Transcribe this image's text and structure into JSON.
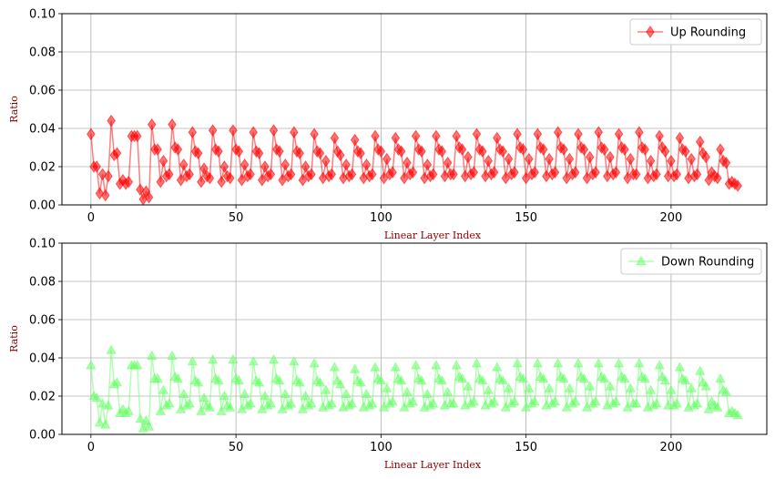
{
  "chart_data": [
    {
      "type": "line",
      "title": "",
      "xlabel": "Linear Layer Index",
      "ylabel": "Ratio",
      "xlim": [
        -10,
        233
      ],
      "ylim": [
        0,
        0.1
      ],
      "xticks": [
        "0",
        "50",
        "100",
        "150",
        "200"
      ],
      "xtick_values": [
        0,
        50,
        100,
        150,
        200
      ],
      "yticks": [
        "0.00",
        "0.02",
        "0.04",
        "0.06",
        "0.08",
        "0.10"
      ],
      "ytick_values": [
        0,
        0.02,
        0.04,
        0.06,
        0.08,
        0.1
      ],
      "grid": true,
      "legend": "top-right",
      "series": [
        {
          "name": "Up Rounding",
          "color": "#ff0000",
          "marker": "diamond",
          "x_start": 0,
          "values": [
            0.037,
            0.02,
            0.02,
            0.006,
            0.016,
            0.005,
            0.015,
            0.044,
            0.026,
            0.027,
            0.011,
            0.013,
            0.011,
            0.012,
            0.036,
            0.036,
            0.036,
            0.008,
            0.003,
            0.007,
            0.004,
            0.042,
            0.029,
            0.029,
            0.012,
            0.023,
            0.015,
            0.016,
            0.042,
            0.03,
            0.029,
            0.013,
            0.021,
            0.015,
            0.016,
            0.038,
            0.028,
            0.027,
            0.012,
            0.019,
            0.015,
            0.014,
            0.039,
            0.029,
            0.028,
            0.012,
            0.02,
            0.015,
            0.014,
            0.039,
            0.029,
            0.028,
            0.013,
            0.021,
            0.015,
            0.016,
            0.038,
            0.028,
            0.027,
            0.013,
            0.02,
            0.015,
            0.016,
            0.039,
            0.029,
            0.028,
            0.013,
            0.021,
            0.015,
            0.016,
            0.038,
            0.028,
            0.027,
            0.013,
            0.02,
            0.015,
            0.016,
            0.037,
            0.028,
            0.027,
            0.014,
            0.023,
            0.015,
            0.016,
            0.035,
            0.028,
            0.026,
            0.014,
            0.021,
            0.015,
            0.016,
            0.034,
            0.028,
            0.027,
            0.014,
            0.021,
            0.015,
            0.016,
            0.036,
            0.029,
            0.028,
            0.014,
            0.024,
            0.016,
            0.017,
            0.035,
            0.029,
            0.028,
            0.014,
            0.022,
            0.016,
            0.017,
            0.036,
            0.029,
            0.028,
            0.014,
            0.021,
            0.015,
            0.016,
            0.036,
            0.029,
            0.028,
            0.015,
            0.022,
            0.016,
            0.016,
            0.036,
            0.03,
            0.029,
            0.015,
            0.025,
            0.016,
            0.017,
            0.037,
            0.029,
            0.028,
            0.015,
            0.023,
            0.016,
            0.017,
            0.035,
            0.029,
            0.028,
            0.014,
            0.024,
            0.016,
            0.017,
            0.037,
            0.03,
            0.029,
            0.014,
            0.024,
            0.016,
            0.017,
            0.037,
            0.03,
            0.029,
            0.015,
            0.024,
            0.016,
            0.017,
            0.038,
            0.03,
            0.029,
            0.014,
            0.024,
            0.016,
            0.017,
            0.037,
            0.03,
            0.029,
            0.014,
            0.025,
            0.016,
            0.017,
            0.038,
            0.03,
            0.029,
            0.015,
            0.025,
            0.016,
            0.017,
            0.037,
            0.03,
            0.029,
            0.014,
            0.024,
            0.016,
            0.016,
            0.038,
            0.03,
            0.029,
            0.014,
            0.023,
            0.015,
            0.016,
            0.036,
            0.03,
            0.028,
            0.015,
            0.023,
            0.015,
            0.016,
            0.035,
            0.029,
            0.028,
            0.014,
            0.024,
            0.015,
            0.016,
            0.033,
            0.027,
            0.025,
            0.013,
            0.017,
            0.015,
            0.014,
            0.029,
            0.023,
            0.022,
            0.011,
            0.012,
            0.011,
            0.01
          ]
        }
      ]
    },
    {
      "type": "line",
      "title": "",
      "xlabel": "Linear Layer Index",
      "ylabel": "Ratio",
      "xlim": [
        -10,
        233
      ],
      "ylim": [
        0,
        0.1
      ],
      "xticks": [
        "0",
        "50",
        "100",
        "150",
        "200"
      ],
      "xtick_values": [
        0,
        50,
        100,
        150,
        200
      ],
      "yticks": [
        "0.00",
        "0.02",
        "0.04",
        "0.06",
        "0.08",
        "0.10"
      ],
      "ytick_values": [
        0,
        0.02,
        0.04,
        0.06,
        0.08,
        0.1
      ],
      "grid": true,
      "legend": "top-right",
      "series": [
        {
          "name": "Down Rounding",
          "color": "#66ff66",
          "marker": "triangle-up",
          "x_start": 0,
          "values": [
            0.036,
            0.02,
            0.019,
            0.006,
            0.016,
            0.005,
            0.015,
            0.044,
            0.026,
            0.027,
            0.011,
            0.013,
            0.011,
            0.012,
            0.036,
            0.036,
            0.036,
            0.008,
            0.003,
            0.007,
            0.004,
            0.041,
            0.029,
            0.029,
            0.012,
            0.023,
            0.015,
            0.016,
            0.041,
            0.03,
            0.029,
            0.013,
            0.021,
            0.015,
            0.016,
            0.038,
            0.028,
            0.027,
            0.012,
            0.019,
            0.015,
            0.014,
            0.039,
            0.029,
            0.028,
            0.012,
            0.02,
            0.015,
            0.014,
            0.039,
            0.029,
            0.028,
            0.013,
            0.021,
            0.015,
            0.016,
            0.038,
            0.028,
            0.027,
            0.013,
            0.02,
            0.015,
            0.016,
            0.039,
            0.029,
            0.028,
            0.013,
            0.021,
            0.015,
            0.016,
            0.038,
            0.028,
            0.027,
            0.013,
            0.02,
            0.015,
            0.016,
            0.037,
            0.028,
            0.027,
            0.014,
            0.023,
            0.015,
            0.016,
            0.035,
            0.028,
            0.026,
            0.014,
            0.021,
            0.015,
            0.016,
            0.034,
            0.028,
            0.027,
            0.014,
            0.021,
            0.015,
            0.016,
            0.035,
            0.029,
            0.028,
            0.014,
            0.024,
            0.016,
            0.017,
            0.035,
            0.029,
            0.028,
            0.014,
            0.022,
            0.016,
            0.017,
            0.036,
            0.029,
            0.028,
            0.014,
            0.021,
            0.015,
            0.016,
            0.036,
            0.029,
            0.028,
            0.015,
            0.022,
            0.016,
            0.016,
            0.036,
            0.03,
            0.029,
            0.015,
            0.025,
            0.016,
            0.017,
            0.037,
            0.029,
            0.028,
            0.015,
            0.023,
            0.016,
            0.017,
            0.035,
            0.029,
            0.028,
            0.014,
            0.024,
            0.016,
            0.017,
            0.037,
            0.03,
            0.029,
            0.014,
            0.024,
            0.016,
            0.017,
            0.037,
            0.03,
            0.029,
            0.015,
            0.024,
            0.016,
            0.017,
            0.037,
            0.03,
            0.029,
            0.014,
            0.024,
            0.016,
            0.017,
            0.037,
            0.03,
            0.029,
            0.014,
            0.025,
            0.016,
            0.017,
            0.037,
            0.03,
            0.029,
            0.015,
            0.025,
            0.016,
            0.017,
            0.037,
            0.03,
            0.029,
            0.014,
            0.024,
            0.016,
            0.016,
            0.037,
            0.03,
            0.029,
            0.014,
            0.023,
            0.015,
            0.016,
            0.036,
            0.03,
            0.028,
            0.015,
            0.023,
            0.015,
            0.016,
            0.035,
            0.029,
            0.028,
            0.014,
            0.024,
            0.015,
            0.016,
            0.033,
            0.027,
            0.025,
            0.013,
            0.017,
            0.015,
            0.014,
            0.029,
            0.023,
            0.022,
            0.011,
            0.012,
            0.011,
            0.01
          ]
        }
      ]
    }
  ]
}
